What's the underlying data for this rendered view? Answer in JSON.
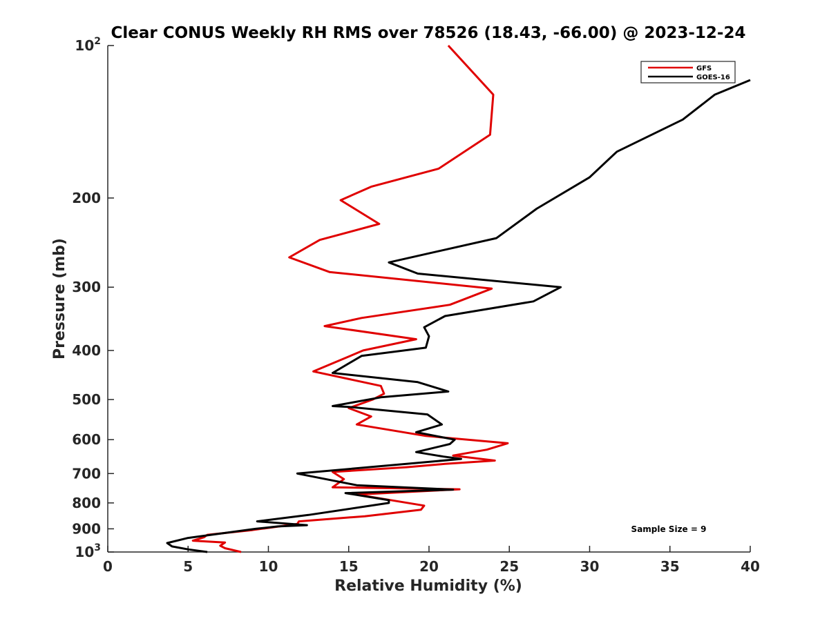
{
  "chart_data": {
    "type": "line",
    "title": "Clear CONUS Weekly RH RMS over 78526 (18.43, -66.00) @ 2023-12-24",
    "xlabel": "Relative Humidity (%)",
    "ylabel": "Pressure (mb)",
    "xlim": [
      0,
      40
    ],
    "ylim": [
      100,
      1000
    ],
    "yscale": "log",
    "y_reversed": true,
    "grid": false,
    "legend_position": "top-right",
    "xticks": [
      "0",
      "5",
      "10",
      "15",
      "20",
      "25",
      "30",
      "35",
      "40"
    ],
    "yticks": [
      {
        "value": 100,
        "base": "10",
        "exp": "2"
      },
      {
        "value": 200,
        "label": "200"
      },
      {
        "value": 300,
        "label": "300"
      },
      {
        "value": 400,
        "label": "400"
      },
      {
        "value": 500,
        "label": "500"
      },
      {
        "value": 600,
        "label": "600"
      },
      {
        "value": 700,
        "label": "700"
      },
      {
        "value": 800,
        "label": "800"
      },
      {
        "value": 900,
        "label": "900"
      },
      {
        "value": 1000,
        "base": "10",
        "exp": "3"
      }
    ],
    "annotation": "Sample Size = 9",
    "series": [
      {
        "name": "GFS",
        "color": "#e00000",
        "points": [
          [
            21.2,
            100
          ],
          [
            24.0,
            125
          ],
          [
            23.8,
            150
          ],
          [
            20.6,
            175
          ],
          [
            16.4,
            190
          ],
          [
            14.5,
            202
          ],
          [
            16.9,
            225
          ],
          [
            13.2,
            242
          ],
          [
            11.3,
            262
          ],
          [
            13.8,
            280
          ],
          [
            23.9,
            302
          ],
          [
            21.3,
            325
          ],
          [
            15.8,
            345
          ],
          [
            13.5,
            358
          ],
          [
            19.2,
            380
          ],
          [
            15.9,
            400
          ],
          [
            12.8,
            440
          ],
          [
            17.0,
            470
          ],
          [
            17.2,
            487
          ],
          [
            16.5,
            500
          ],
          [
            15.0,
            520
          ],
          [
            16.4,
            540
          ],
          [
            15.5,
            560
          ],
          [
            19.8,
            590
          ],
          [
            24.9,
            610
          ],
          [
            23.6,
            628
          ],
          [
            21.5,
            645
          ],
          [
            24.1,
            660
          ],
          [
            21.0,
            670
          ],
          [
            18.6,
            680
          ],
          [
            14.0,
            695
          ],
          [
            14.7,
            718
          ],
          [
            14.0,
            745
          ],
          [
            21.9,
            752
          ],
          [
            15.5,
            770
          ],
          [
            19.7,
            810
          ],
          [
            19.5,
            825
          ],
          [
            16.0,
            850
          ],
          [
            11.9,
            870
          ],
          [
            11.8,
            880
          ],
          [
            9.0,
            905
          ],
          [
            6.2,
            925
          ],
          [
            6.0,
            935
          ],
          [
            5.3,
            950
          ],
          [
            7.3,
            958
          ],
          [
            7.0,
            972
          ],
          [
            7.3,
            983
          ],
          [
            8.3,
            1000
          ]
        ]
      },
      {
        "name": "GOES-16",
        "color": "#000000",
        "points": [
          [
            40.0,
            117
          ],
          [
            37.8,
            125
          ],
          [
            35.8,
            140
          ],
          [
            31.7,
            162
          ],
          [
            30.0,
            182
          ],
          [
            26.7,
            210
          ],
          [
            24.2,
            240
          ],
          [
            17.5,
            268
          ],
          [
            19.3,
            282
          ],
          [
            28.2,
            300
          ],
          [
            26.5,
            320
          ],
          [
            21.0,
            342
          ],
          [
            19.7,
            360
          ],
          [
            20.0,
            375
          ],
          [
            19.8,
            395
          ],
          [
            15.8,
            410
          ],
          [
            14.0,
            443
          ],
          [
            19.3,
            462
          ],
          [
            21.2,
            482
          ],
          [
            17.0,
            495
          ],
          [
            14.0,
            515
          ],
          [
            15.0,
            517
          ],
          [
            19.9,
            535
          ],
          [
            20.8,
            560
          ],
          [
            19.2,
            580
          ],
          [
            21.6,
            600
          ],
          [
            21.3,
            612
          ],
          [
            19.2,
            635
          ],
          [
            20.9,
            648
          ],
          [
            22.0,
            655
          ],
          [
            18.6,
            670
          ],
          [
            11.8,
            700
          ],
          [
            15.5,
            738
          ],
          [
            21.5,
            753
          ],
          [
            14.8,
            765
          ],
          [
            17.5,
            790
          ],
          [
            17.5,
            800
          ],
          [
            12.5,
            845
          ],
          [
            9.3,
            870
          ],
          [
            12.4,
            885
          ],
          [
            10.6,
            890
          ],
          [
            9.2,
            900
          ],
          [
            5.0,
            938
          ],
          [
            3.7,
            960
          ],
          [
            4.0,
            975
          ],
          [
            5.0,
            988
          ],
          [
            6.2,
            1000
          ]
        ]
      }
    ]
  }
}
